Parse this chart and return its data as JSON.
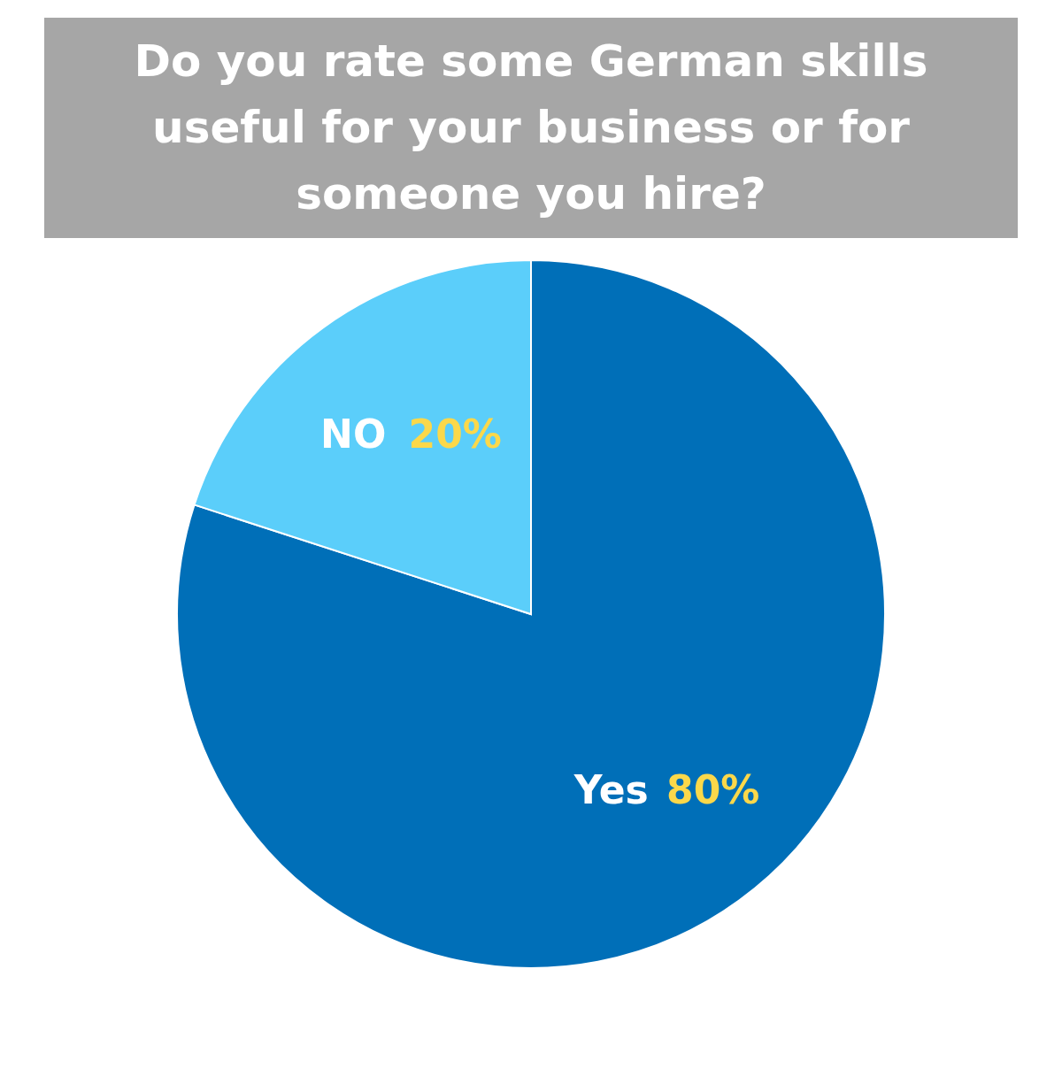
{
  "chart_data": {
    "type": "pie",
    "title": "Do you rate some German skills useful for your business or for someone you hire?",
    "categories": [
      "Yes",
      "NO"
    ],
    "values": [
      80,
      20
    ],
    "colors": [
      "#006fb8",
      "#5bcefa"
    ],
    "value_labels": [
      "80%",
      "20%"
    ]
  }
}
